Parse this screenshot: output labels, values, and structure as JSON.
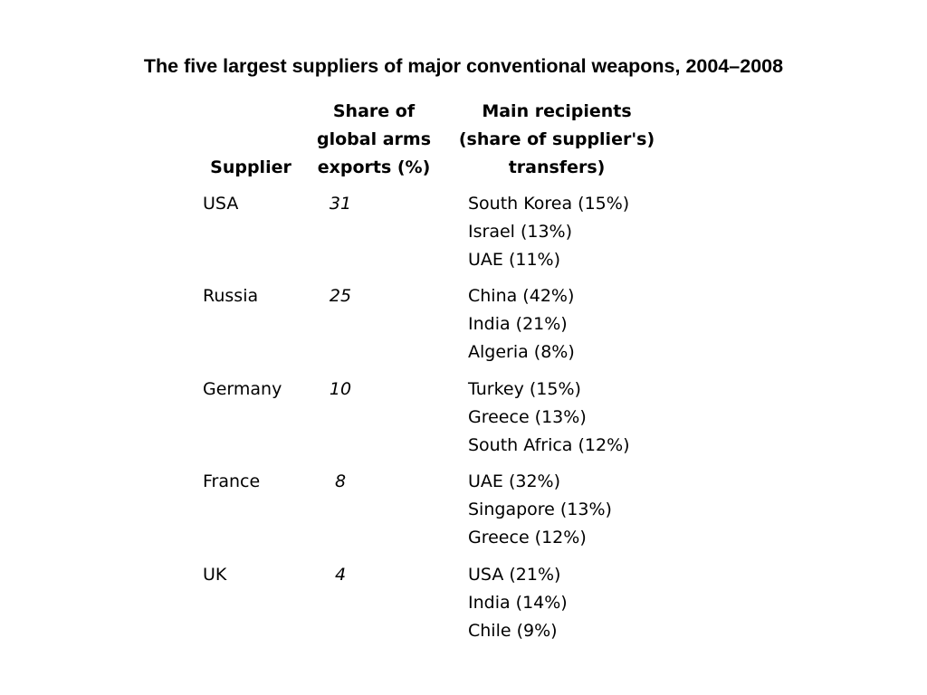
{
  "title": "The five largest suppliers of major conventional weapons, 2004–2008",
  "table": {
    "headers": {
      "supplier": "Supplier",
      "share": [
        "Share of",
        "global arms",
        "exports (%)"
      ],
      "recipients": [
        "Main recipients",
        "(share of supplier's)",
        "transfers)"
      ]
    },
    "rows": [
      {
        "supplier": "USA",
        "share": "31",
        "recipients": [
          "South Korea (15%)",
          "Israel (13%)",
          "UAE (11%)"
        ]
      },
      {
        "supplier": "Russia",
        "share": "25",
        "recipients": [
          "China (42%)",
          "India (21%)",
          "Algeria (8%)"
        ]
      },
      {
        "supplier": "Germany",
        "share": "10",
        "recipients": [
          "Turkey (15%)",
          "Greece (13%)",
          "South Africa (12%)"
        ]
      },
      {
        "supplier": "France",
        "share": "8",
        "recipients": [
          "UAE (32%)",
          "Singapore (13%)",
          "Greece (12%)"
        ]
      },
      {
        "supplier": "UK",
        "share": "4",
        "recipients": [
          "USA (21%)",
          "India (14%)",
          "Chile (9%)"
        ]
      }
    ]
  }
}
